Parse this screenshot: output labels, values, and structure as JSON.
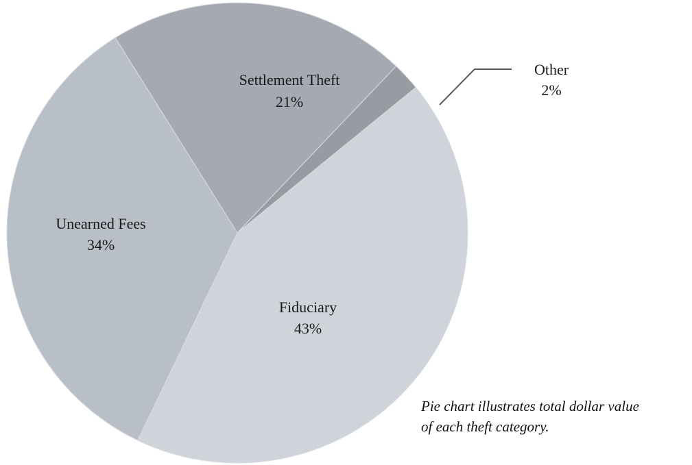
{
  "chart_data": {
    "type": "pie",
    "categories": [
      "Settlement Theft",
      "Other",
      "Fiduciary",
      "Unearned Fees"
    ],
    "values": [
      21,
      2,
      43,
      34
    ],
    "labels": [
      "21%",
      "2%",
      "43%",
      "34%"
    ],
    "colors": [
      "#a5aab2",
      "#979ca3",
      "#cfd4da",
      "#b9bfc6"
    ],
    "start_angle_deg": -122,
    "direction": "clockwise",
    "legend": "none"
  },
  "caption": {
    "line1": "Pie chart illustrates total dollar value",
    "line2": "of each theft category."
  }
}
